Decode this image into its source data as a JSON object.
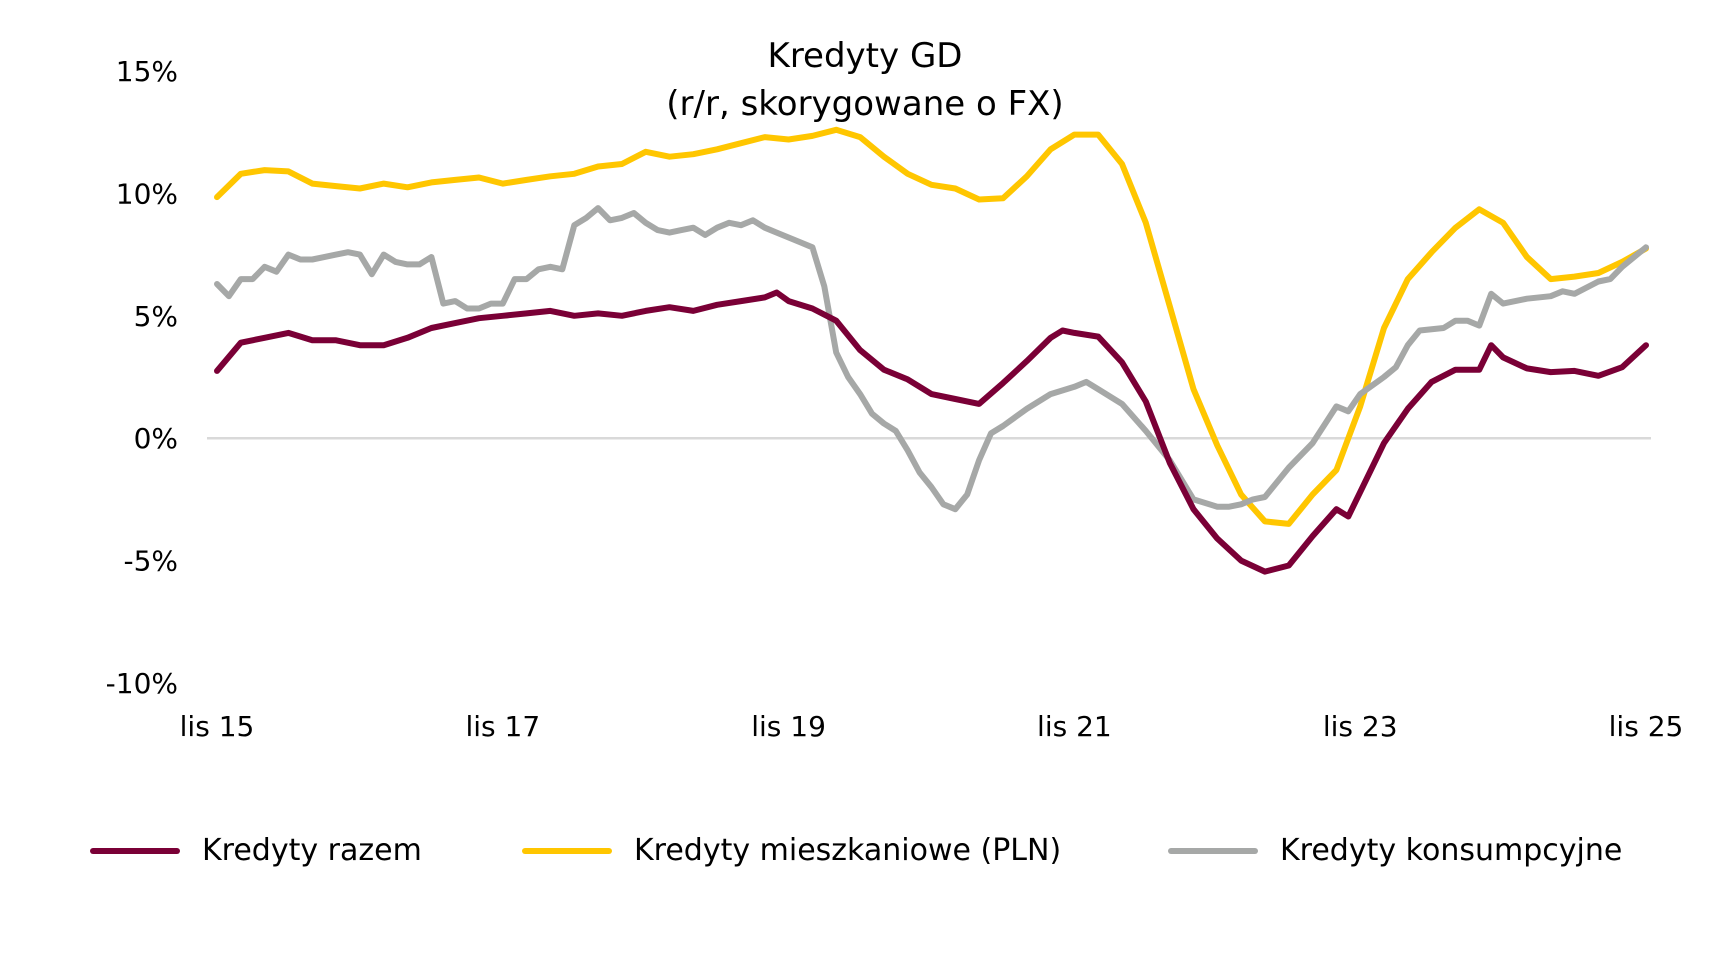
{
  "chart_data": {
    "type": "line",
    "title": "Kredyty GD",
    "subtitle": "(r/r, skorygowane o FX)",
    "xlabel": "",
    "ylabel": "",
    "ylim": [
      -10,
      15
    ],
    "y_ticks": [
      -10,
      -5,
      0,
      5,
      10,
      15
    ],
    "y_tick_labels": [
      "-10%",
      "-5%",
      "0%",
      "5%",
      "10%",
      "15%"
    ],
    "x_range": [
      "2015-11",
      "2025-11"
    ],
    "x_ticks": [
      "2015-11",
      "2017-11",
      "2019-11",
      "2021-11",
      "2023-11",
      "2025-11"
    ],
    "x_tick_labels": [
      "lis 15",
      "lis 17",
      "lis 19",
      "lis 21",
      "lis 23",
      "lis 25"
    ],
    "zero_line": true,
    "grid": false,
    "legend": "bottom",
    "series": [
      {
        "name": "Kredyty razem",
        "color": "#7a0036",
        "points": [
          [
            "2015-11",
            2.75
          ],
          [
            "2016-01",
            3.9
          ],
          [
            "2016-03",
            4.1
          ],
          [
            "2016-05",
            4.3
          ],
          [
            "2016-07",
            4.0
          ],
          [
            "2016-09",
            4.0
          ],
          [
            "2016-11",
            3.8
          ],
          [
            "2017-01",
            3.8
          ],
          [
            "2017-03",
            4.1
          ],
          [
            "2017-05",
            4.5
          ],
          [
            "2017-07",
            4.7
          ],
          [
            "2017-09",
            4.9
          ],
          [
            "2017-11",
            5.0
          ],
          [
            "2018-01",
            5.1
          ],
          [
            "2018-03",
            5.2
          ],
          [
            "2018-05",
            5.0
          ],
          [
            "2018-07",
            5.1
          ],
          [
            "2018-09",
            5.0
          ],
          [
            "2018-11",
            5.2
          ],
          [
            "2019-01",
            5.35
          ],
          [
            "2019-03",
            5.2
          ],
          [
            "2019-05",
            5.45
          ],
          [
            "2019-07",
            5.6
          ],
          [
            "2019-09",
            5.75
          ],
          [
            "2019-10",
            5.95
          ],
          [
            "2019-11",
            5.6
          ],
          [
            "2020-01",
            5.3
          ],
          [
            "2020-03",
            4.8
          ],
          [
            "2020-05",
            3.6
          ],
          [
            "2020-07",
            2.8
          ],
          [
            "2020-09",
            2.4
          ],
          [
            "2020-11",
            1.8
          ],
          [
            "2021-01",
            1.6
          ],
          [
            "2021-03",
            1.4
          ],
          [
            "2021-05",
            2.25
          ],
          [
            "2021-07",
            3.15
          ],
          [
            "2021-09",
            4.1
          ],
          [
            "2021-10",
            4.4
          ],
          [
            "2021-11",
            4.3
          ],
          [
            "2022-01",
            4.15
          ],
          [
            "2022-03",
            3.1
          ],
          [
            "2022-05",
            1.5
          ],
          [
            "2022-07",
            -1.0
          ],
          [
            "2022-09",
            -2.9
          ],
          [
            "2022-11",
            -4.1
          ],
          [
            "2023-01",
            -5.0
          ],
          [
            "2023-03",
            -5.45
          ],
          [
            "2023-05",
            -5.2
          ],
          [
            "2023-07",
            -4.0
          ],
          [
            "2023-09",
            -2.9
          ],
          [
            "2023-10",
            -3.2
          ],
          [
            "2023-11",
            -2.2
          ],
          [
            "2024-01",
            -0.2
          ],
          [
            "2024-03",
            1.2
          ],
          [
            "2024-05",
            2.3
          ],
          [
            "2024-07",
            2.8
          ],
          [
            "2024-09",
            2.8
          ],
          [
            "2024-10",
            3.8
          ],
          [
            "2024-11",
            3.3
          ],
          [
            "2025-01",
            2.85
          ],
          [
            "2025-03",
            2.7
          ],
          [
            "2025-05",
            2.75
          ],
          [
            "2025-07",
            2.55
          ],
          [
            "2025-09",
            2.9
          ],
          [
            "2025-11",
            3.8
          ]
        ]
      },
      {
        "name": "Kredyty mieszkaniowe (PLN)",
        "color": "#ffc600",
        "points": [
          [
            "2015-11",
            9.85
          ],
          [
            "2016-01",
            10.8
          ],
          [
            "2016-03",
            10.95
          ],
          [
            "2016-05",
            10.9
          ],
          [
            "2016-07",
            10.4
          ],
          [
            "2016-09",
            10.3
          ],
          [
            "2016-11",
            10.2
          ],
          [
            "2017-01",
            10.4
          ],
          [
            "2017-03",
            10.25
          ],
          [
            "2017-05",
            10.45
          ],
          [
            "2017-07",
            10.55
          ],
          [
            "2017-09",
            10.65
          ],
          [
            "2017-11",
            10.4
          ],
          [
            "2018-01",
            10.55
          ],
          [
            "2018-03",
            10.7
          ],
          [
            "2018-05",
            10.8
          ],
          [
            "2018-07",
            11.1
          ],
          [
            "2018-09",
            11.2
          ],
          [
            "2018-11",
            11.7
          ],
          [
            "2019-01",
            11.5
          ],
          [
            "2019-03",
            11.6
          ],
          [
            "2019-05",
            11.8
          ],
          [
            "2019-07",
            12.05
          ],
          [
            "2019-09",
            12.3
          ],
          [
            "2019-11",
            12.2
          ],
          [
            "2020-01",
            12.35
          ],
          [
            "2020-03",
            12.6
          ],
          [
            "2020-05",
            12.3
          ],
          [
            "2020-07",
            11.5
          ],
          [
            "2020-09",
            10.8
          ],
          [
            "2020-11",
            10.35
          ],
          [
            "2021-01",
            10.2
          ],
          [
            "2021-03",
            9.75
          ],
          [
            "2021-05",
            9.8
          ],
          [
            "2021-07",
            10.7
          ],
          [
            "2021-09",
            11.8
          ],
          [
            "2021-11",
            12.4
          ],
          [
            "2022-01",
            12.4
          ],
          [
            "2022-03",
            11.2
          ],
          [
            "2022-05",
            8.8
          ],
          [
            "2022-07",
            5.4
          ],
          [
            "2022-09",
            2.0
          ],
          [
            "2022-11",
            -0.3
          ],
          [
            "2023-01",
            -2.3
          ],
          [
            "2023-03",
            -3.4
          ],
          [
            "2023-05",
            -3.5
          ],
          [
            "2023-07",
            -2.3
          ],
          [
            "2023-09",
            -1.3
          ],
          [
            "2023-11",
            1.3
          ],
          [
            "2024-01",
            4.5
          ],
          [
            "2024-03",
            6.5
          ],
          [
            "2024-05",
            7.6
          ],
          [
            "2024-07",
            8.6
          ],
          [
            "2024-09",
            9.35
          ],
          [
            "2024-11",
            8.8
          ],
          [
            "2025-01",
            7.4
          ],
          [
            "2025-03",
            6.5
          ],
          [
            "2025-05",
            6.6
          ],
          [
            "2025-07",
            6.75
          ],
          [
            "2025-09",
            7.2
          ],
          [
            "2025-11",
            7.75
          ]
        ]
      },
      {
        "name": "Kredyty konsumpcyjne",
        "color": "#a6a8a7",
        "points": [
          [
            "2015-11",
            6.3
          ],
          [
            "2015-12",
            5.8
          ],
          [
            "2016-01",
            6.5
          ],
          [
            "2016-02",
            6.5
          ],
          [
            "2016-03",
            7.0
          ],
          [
            "2016-04",
            6.8
          ],
          [
            "2016-05",
            7.5
          ],
          [
            "2016-06",
            7.3
          ],
          [
            "2016-07",
            7.3
          ],
          [
            "2016-09",
            7.5
          ],
          [
            "2016-10",
            7.6
          ],
          [
            "2016-11",
            7.5
          ],
          [
            "2016-12",
            6.7
          ],
          [
            "2017-01",
            7.5
          ],
          [
            "2017-02",
            7.2
          ],
          [
            "2017-03",
            7.1
          ],
          [
            "2017-04",
            7.1
          ],
          [
            "2017-05",
            7.4
          ],
          [
            "2017-06",
            5.5
          ],
          [
            "2017-07",
            5.6
          ],
          [
            "2017-08",
            5.3
          ],
          [
            "2017-09",
            5.3
          ],
          [
            "2017-10",
            5.5
          ],
          [
            "2017-11",
            5.5
          ],
          [
            "2017-12",
            6.5
          ],
          [
            "2018-01",
            6.5
          ],
          [
            "2018-02",
            6.9
          ],
          [
            "2018-03",
            7.0
          ],
          [
            "2018-04",
            6.9
          ],
          [
            "2018-05",
            8.7
          ],
          [
            "2018-06",
            9.0
          ],
          [
            "2018-07",
            9.4
          ],
          [
            "2018-08",
            8.9
          ],
          [
            "2018-09",
            9.0
          ],
          [
            "2018-10",
            9.2
          ],
          [
            "2018-11",
            8.8
          ],
          [
            "2018-12",
            8.5
          ],
          [
            "2019-01",
            8.4
          ],
          [
            "2019-02",
            8.5
          ],
          [
            "2019-03",
            8.6
          ],
          [
            "2019-04",
            8.3
          ],
          [
            "2019-05",
            8.6
          ],
          [
            "2019-06",
            8.8
          ],
          [
            "2019-07",
            8.7
          ],
          [
            "2019-08",
            8.9
          ],
          [
            "2019-09",
            8.6
          ],
          [
            "2019-10",
            8.4
          ],
          [
            "2019-11",
            8.2
          ],
          [
            "2019-12",
            8.0
          ],
          [
            "2020-01",
            7.8
          ],
          [
            "2020-02",
            6.2
          ],
          [
            "2020-03",
            3.5
          ],
          [
            "2020-04",
            2.5
          ],
          [
            "2020-05",
            1.8
          ],
          [
            "2020-06",
            1.0
          ],
          [
            "2020-07",
            0.6
          ],
          [
            "2020-08",
            0.3
          ],
          [
            "2020-09",
            -0.5
          ],
          [
            "2020-10",
            -1.4
          ],
          [
            "2020-11",
            -2.0
          ],
          [
            "2020-12",
            -2.7
          ],
          [
            "2021-01",
            -2.9
          ],
          [
            "2021-02",
            -2.3
          ],
          [
            "2021-03",
            -0.9
          ],
          [
            "2021-04",
            0.2
          ],
          [
            "2021-05",
            0.5
          ],
          [
            "2021-07",
            1.2
          ],
          [
            "2021-09",
            1.8
          ],
          [
            "2021-11",
            2.1
          ],
          [
            "2021-12",
            2.3
          ],
          [
            "2022-01",
            2.0
          ],
          [
            "2022-03",
            1.4
          ],
          [
            "2022-05",
            0.3
          ],
          [
            "2022-07",
            -0.9
          ],
          [
            "2022-09",
            -2.5
          ],
          [
            "2022-11",
            -2.8
          ],
          [
            "2022-12",
            -2.8
          ],
          [
            "2023-01",
            -2.7
          ],
          [
            "2023-02",
            -2.5
          ],
          [
            "2023-03",
            -2.4
          ],
          [
            "2023-05",
            -1.2
          ],
          [
            "2023-07",
            -0.2
          ],
          [
            "2023-09",
            1.3
          ],
          [
            "2023-10",
            1.1
          ],
          [
            "2023-11",
            1.8
          ],
          [
            "2024-01",
            2.5
          ],
          [
            "2024-02",
            2.9
          ],
          [
            "2024-03",
            3.8
          ],
          [
            "2024-04",
            4.4
          ],
          [
            "2024-06",
            4.5
          ],
          [
            "2024-07",
            4.8
          ],
          [
            "2024-08",
            4.8
          ],
          [
            "2024-09",
            4.6
          ],
          [
            "2024-10",
            5.9
          ],
          [
            "2024-11",
            5.5
          ],
          [
            "2025-01",
            5.7
          ],
          [
            "2025-03",
            5.8
          ],
          [
            "2025-04",
            6.0
          ],
          [
            "2025-05",
            5.9
          ],
          [
            "2025-07",
            6.4
          ],
          [
            "2025-08",
            6.5
          ],
          [
            "2025-09",
            7.0
          ],
          [
            "2025-10",
            7.4
          ],
          [
            "2025-11",
            7.8
          ]
        ]
      }
    ]
  }
}
